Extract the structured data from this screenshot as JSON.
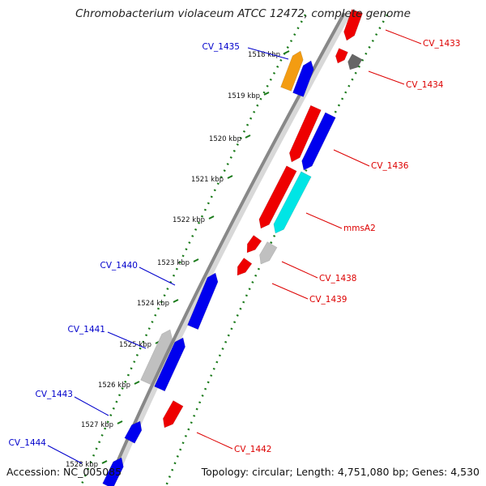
{
  "title": "Chromobacterium violaceum ATCC 12472, complete genome",
  "accession": "Accession: NC_005085",
  "topology": "Topology: circular; Length: 4,751,080 bp; Genes: 4,530",
  "colors": {
    "forward_label": "#0000cc",
    "reverse_label": "#dd0000",
    "backbone": "#888888",
    "ticks": "#1a7a1a",
    "gene_blue": "#0000ee",
    "gene_red": "#ee0000",
    "gene_orange": "#f39c12",
    "gene_cyan": "#00e5e5",
    "gene_gray": "#c0c0c0",
    "gene_darkgray": "#666666"
  },
  "ticks": [
    "1518 kbp",
    "1519 kbp",
    "1520 kbp",
    "1521 kbp",
    "1522 kbp",
    "1523 kbp",
    "1524 kbp",
    "1525 kbp",
    "1526 kbp",
    "1527 kbp",
    "1528 kbp"
  ],
  "genes": [
    {
      "label": "CV_1433",
      "strand": "reverse",
      "color": "gene_red"
    },
    {
      "label": "CV_1434",
      "strand": "reverse",
      "color": "gene_darkgray"
    },
    {
      "label": "CV_1435",
      "strand": "forward",
      "color": "gene_orange"
    },
    {
      "label": "",
      "strand": "forward",
      "color": "gene_blue"
    },
    {
      "label": "CV_1436",
      "strand": "reverse",
      "color": "gene_blue"
    },
    {
      "label": "",
      "strand": "reverse",
      "color": "gene_red"
    },
    {
      "label": "mmsA2",
      "strand": "reverse",
      "color": "gene_cyan"
    },
    {
      "label": "CV_1438",
      "strand": "reverse",
      "color": "gene_gray"
    },
    {
      "label": "CV_1439",
      "strand": "reverse",
      "color": "gene_red"
    },
    {
      "label": "CV_1440",
      "strand": "forward",
      "color": "gene_blue"
    },
    {
      "label": "CV_1441",
      "strand": "forward",
      "color": "gene_gray"
    },
    {
      "label": "",
      "strand": "forward",
      "color": "gene_blue"
    },
    {
      "label": "CV_1442",
      "strand": "reverse",
      "color": "gene_red"
    },
    {
      "label": "CV_1443",
      "strand": "forward",
      "color": "gene_blue"
    },
    {
      "label": "CV_1444",
      "strand": "forward",
      "color": "gene_blue"
    }
  ]
}
